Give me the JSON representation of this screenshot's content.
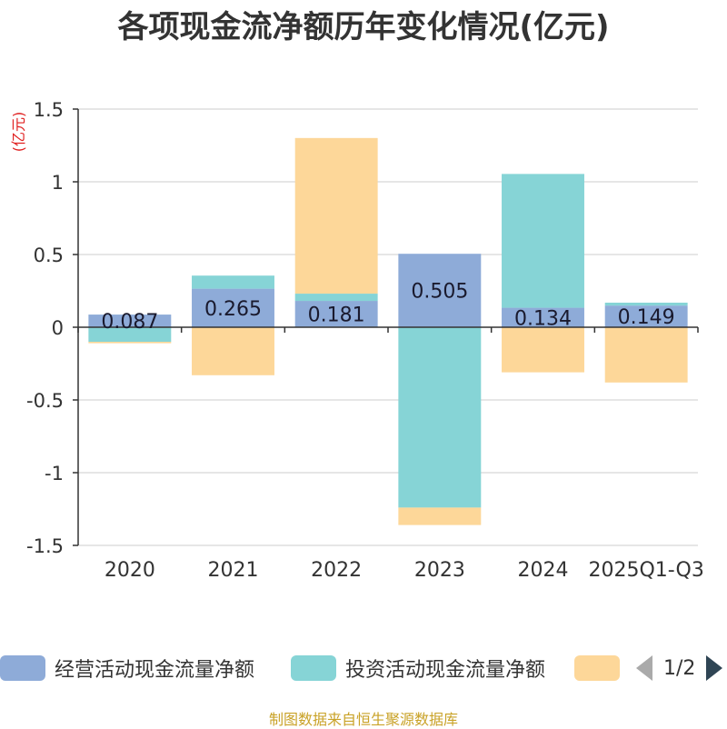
{
  "chart_data": {
    "type": "bar",
    "stacked": true,
    "title": "各项现金流净额历年变化情况(亿元)",
    "ylabel": "(亿元)",
    "xlabel": "",
    "ylim": [
      -1.5,
      1.5
    ],
    "yticks": [
      1.5,
      1,
      0.5,
      0,
      -0.5,
      -1,
      -1.5
    ],
    "grid": true,
    "categories": [
      "2020",
      "2021",
      "2022",
      "2023",
      "2024",
      "2025Q1-Q3"
    ],
    "series": [
      {
        "name": "经营活动现金流量净额",
        "color": "#8eabd8",
        "values": [
          0.087,
          0.265,
          0.181,
          0.505,
          0.134,
          0.149
        ],
        "show_labels": true
      },
      {
        "name": "投资活动现金流量净额",
        "color": "#86d4d6",
        "values": [
          -0.1,
          0.09,
          0.05,
          -1.24,
          0.92,
          0.02
        ]
      },
      {
        "name": "",
        "color": "#fdd799",
        "values": [
          -0.01,
          -0.33,
          1.07,
          -0.12,
          -0.31,
          -0.38
        ]
      }
    ],
    "legend_position": "bottom"
  },
  "legend": {
    "page_indicator": "1/2"
  },
  "footer": {
    "source": "制图数据来自恒生聚源数据库"
  }
}
